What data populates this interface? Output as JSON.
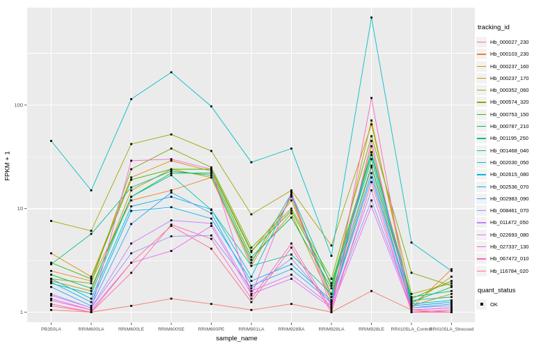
{
  "figure": {
    "background": "#FFFFFF",
    "panel_bg": "#EBEBEB",
    "grid_color": "#FFFFFF",
    "tick_color": "#333333",
    "tick_label_color": "#4D4D4D",
    "point_color": "#000000"
  },
  "chart_data": {
    "type": "line",
    "title": "",
    "xlabel": "sample_name",
    "ylabel": "FPKM + 1",
    "y_scale": "log10",
    "grid": true,
    "legend_position": "right",
    "y_axis_ticks": [
      "1",
      "10",
      "100"
    ],
    "y_minor_gridlines": [
      3.162,
      31.623,
      316.228
    ],
    "ylim": [
      0.77,
      870
    ],
    "categories": [
      "PB350LA",
      "RRIM600LA",
      "RRIM600LE",
      "RRIM600SE",
      "RRIM600PE",
      "RRIM901LA",
      "RRIM928BA",
      "RRIM928LA",
      "RRIM928LE",
      "RRII105LA_Control",
      "RRII105LA_Stressed"
    ],
    "series": [
      {
        "name": "Hb_000027_230",
        "color": "#F8766D",
        "values": [
          1.05,
          1.0,
          1.15,
          1.35,
          1.2,
          1.05,
          1.2,
          1.0,
          1.6,
          1.05,
          1.0
        ]
      },
      {
        "name": "Hb_000103_230",
        "color": "#EA8331",
        "values": [
          2.5,
          2.0,
          12,
          15,
          20,
          2.8,
          13,
          1.3,
          25,
          1.1,
          2.6
        ]
      },
      {
        "name": "Hb_000237_160",
        "color": "#D89000",
        "values": [
          3.7,
          2.2,
          20,
          29,
          23,
          3.8,
          12,
          1.5,
          71,
          1.2,
          2.2
        ]
      },
      {
        "name": "Hb_000237_170",
        "color": "#C09B00",
        "values": [
          2.0,
          1.6,
          15,
          24,
          20,
          3.2,
          9,
          1.3,
          40,
          1.15,
          1.5
        ]
      },
      {
        "name": "Hb_000352_060",
        "color": "#A3A500",
        "values": [
          7.6,
          6.1,
          42,
          52,
          36,
          8.8,
          15,
          4.4,
          65,
          1.5,
          1.9
        ]
      },
      {
        "name": "Hb_000574_320",
        "color": "#7CAE00",
        "values": [
          2.1,
          1.9,
          24,
          38,
          25,
          4.2,
          10,
          2.1,
          50,
          2.4,
          1.8
        ]
      },
      {
        "name": "Hb_000753_150",
        "color": "#39B600",
        "values": [
          3.0,
          2.1,
          19,
          24,
          24,
          3.9,
          9.5,
          1.9,
          35,
          1.35,
          2.0
        ]
      },
      {
        "name": "Hb_000787_210",
        "color": "#00BB4E",
        "values": [
          2.3,
          1.7,
          13,
          22,
          22,
          3.4,
          8.2,
          1.7,
          30,
          1.25,
          1.75
        ]
      },
      {
        "name": "Hb_001195_250",
        "color": "#00BF7D",
        "values": [
          2.9,
          5.7,
          16,
          23,
          21,
          3.0,
          14,
          1.8,
          33,
          1.4,
          1.6
        ]
      },
      {
        "name": "Hb_001468_040",
        "color": "#00C1A3",
        "values": [
          1.9,
          1.5,
          13,
          21,
          9.7,
          2.8,
          3.6,
          1.5,
          26,
          1.3,
          1.4
        ]
      },
      {
        "name": "Hb_002030_050",
        "color": "#00BFC4",
        "values": [
          45,
          15,
          114,
          207,
          97,
          28,
          38,
          3.5,
          700,
          4.7,
          2.5
        ]
      },
      {
        "name": "Hb_002615_080",
        "color": "#00BAE0",
        "values": [
          2.1,
          1.35,
          10.5,
          13,
          9.8,
          2.2,
          13.5,
          1.4,
          35,
          1.2,
          1.3
        ]
      },
      {
        "name": "Hb_002536_070",
        "color": "#00B0F6",
        "values": [
          1.95,
          1.25,
          9.5,
          10.3,
          8.0,
          2.0,
          2.9,
          1.3,
          22,
          1.15,
          1.25
        ]
      },
      {
        "name": "Hb_002983_090",
        "color": "#35A2FF",
        "values": [
          1.75,
          1.15,
          7.1,
          14.3,
          9.0,
          1.8,
          2.6,
          1.25,
          20,
          1.1,
          1.2
        ]
      },
      {
        "name": "Hb_008461_070",
        "color": "#9590FF",
        "values": [
          1.5,
          1.1,
          3.7,
          5.4,
          5.5,
          1.7,
          3.3,
          1.2,
          12,
          1.1,
          1.15
        ]
      },
      {
        "name": "Hb_011472_050",
        "color": "#C77CFF",
        "values": [
          1.45,
          1.1,
          4.6,
          7.7,
          7.2,
          1.6,
          2.3,
          1.15,
          15,
          1.05,
          1.1
        ]
      },
      {
        "name": "Hb_022693_080",
        "color": "#E76BF3",
        "values": [
          1.35,
          1.05,
          3.0,
          3.9,
          6.8,
          1.5,
          2.1,
          1.1,
          10.5,
          1.05,
          1.1
        ]
      },
      {
        "name": "Hb_027337_130",
        "color": "#FA62DB",
        "values": [
          1.3,
          1.05,
          29,
          30,
          24,
          1.45,
          14.5,
          1.1,
          45,
          1.0,
          1.05
        ]
      },
      {
        "name": "Hb_067472_010",
        "color": "#FF62BC",
        "values": [
          1.2,
          1.0,
          2.4,
          7.0,
          5.1,
          1.35,
          4.6,
          1.05,
          117,
          1.0,
          1.05
        ]
      },
      {
        "name": "Hb_116784_020",
        "color": "#FF6A98",
        "values": [
          1.15,
          1.0,
          3.0,
          6.8,
          4.1,
          1.25,
          4.2,
          1.0,
          18,
          1.0,
          1.0
        ]
      }
    ],
    "legend": {
      "title": "tracking_id"
    },
    "quant_legend": {
      "title": "quant_status",
      "items": [
        {
          "label": "OK",
          "marker": "black-square"
        }
      ]
    }
  }
}
